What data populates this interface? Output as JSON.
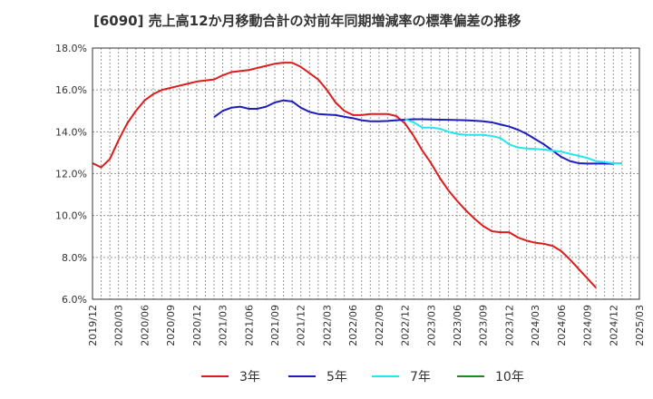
{
  "chart_data": {
    "type": "line",
    "title": "[6090]  売上高12か月移動合計の対前年同期増減率の標準偏差の推移",
    "ylim": [
      6.0,
      18.0
    ],
    "y_ticks": [
      "6.0%",
      "8.0%",
      "10.0%",
      "12.0%",
      "14.0%",
      "16.0%",
      "18.0%"
    ],
    "x_ticks": [
      "2019/12",
      "2020/03",
      "2020/06",
      "2020/09",
      "2020/12",
      "2021/03",
      "2021/06",
      "2021/09",
      "2021/12",
      "2022/03",
      "2022/06",
      "2022/09",
      "2022/12",
      "2023/03",
      "2023/06",
      "2023/09",
      "2023/12",
      "2024/03",
      "2024/06",
      "2024/09",
      "2024/12",
      "2025/03"
    ],
    "x_start": "2019/12",
    "grid": true,
    "legend_position": "bottom",
    "series": [
      {
        "name": "3年",
        "color": "#dd1c1c",
        "start": "2019/12",
        "values": [
          12.5,
          12.3,
          12.7,
          13.6,
          14.4,
          15.0,
          15.5,
          15.8,
          16.0,
          16.1,
          16.2,
          16.3,
          16.4,
          16.45,
          16.5,
          16.7,
          16.85,
          16.9,
          16.95,
          17.05,
          17.15,
          17.25,
          17.3,
          17.3,
          17.1,
          16.8,
          16.5,
          16.0,
          15.4,
          15.0,
          14.8,
          14.8,
          14.85,
          14.85,
          14.85,
          14.75,
          14.4,
          13.8,
          13.1,
          12.5,
          11.8,
          11.2,
          10.7,
          10.25,
          9.85,
          9.5,
          9.25,
          9.2,
          9.2,
          8.95,
          8.8,
          8.7,
          8.65,
          8.55,
          8.3,
          7.9,
          7.45,
          7.0,
          6.55
        ]
      },
      {
        "name": "5年",
        "color": "#1c1cbf",
        "start": "2021/02",
        "values": [
          14.7,
          15.0,
          15.15,
          15.2,
          15.1,
          15.1,
          15.2,
          15.4,
          15.5,
          15.45,
          15.15,
          14.95,
          14.85,
          14.82,
          14.8,
          14.72,
          14.65,
          14.55,
          14.5,
          14.5,
          14.52,
          14.55,
          14.58,
          14.6,
          14.6,
          14.59,
          14.58,
          14.57,
          14.56,
          14.55,
          14.53,
          14.5,
          14.45,
          14.35,
          14.25,
          14.1,
          13.9,
          13.65,
          13.4,
          13.1,
          12.8,
          12.6,
          12.5,
          12.48,
          12.48,
          12.48,
          12.47
        ]
      },
      {
        "name": "7年",
        "color": "#22e6f0",
        "start": "2022/12",
        "values": [
          14.6,
          14.45,
          14.2,
          14.2,
          14.15,
          14.0,
          13.9,
          13.85,
          13.85,
          13.85,
          13.8,
          13.7,
          13.4,
          13.25,
          13.2,
          13.18,
          13.15,
          13.1,
          13.05,
          12.95,
          12.85,
          12.75,
          12.6,
          12.55,
          12.5,
          12.5
        ]
      },
      {
        "name": "10年",
        "color": "#1c8a1c",
        "start": "2019/12",
        "values": []
      }
    ]
  }
}
